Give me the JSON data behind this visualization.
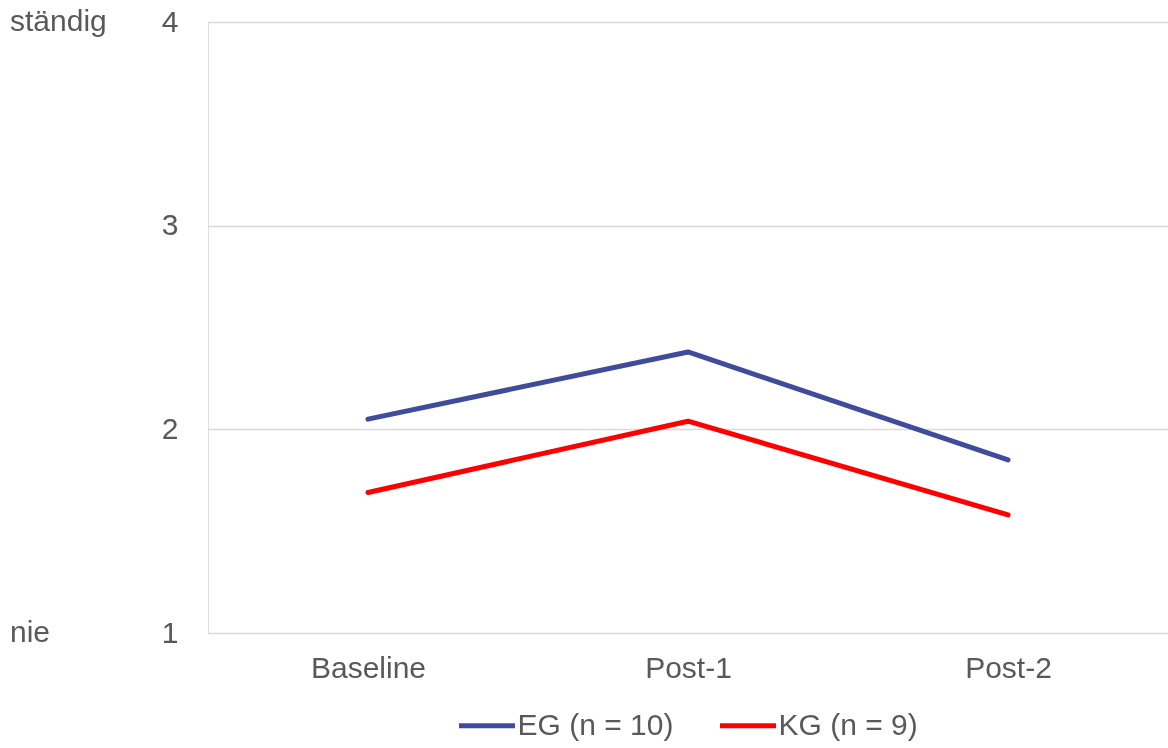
{
  "chart_data": {
    "type": "line",
    "categories": [
      "Baseline",
      "Post-1",
      "Post-2"
    ],
    "series": [
      {
        "name": "EG (n = 10)",
        "color": "#3f4b9b",
        "values": [
          2.05,
          2.38,
          1.85
        ]
      },
      {
        "name": "KG (n = 9)",
        "color": "#ff0000",
        "values": [
          1.69,
          2.04,
          1.58
        ]
      }
    ],
    "ylim": [
      1,
      4
    ],
    "yticks": [
      1,
      2,
      3,
      4
    ],
    "grid": "y",
    "legend": "bottom",
    "marker": "none",
    "line_style": "solid",
    "annotations": [
      "ständig",
      "nie"
    ]
  }
}
